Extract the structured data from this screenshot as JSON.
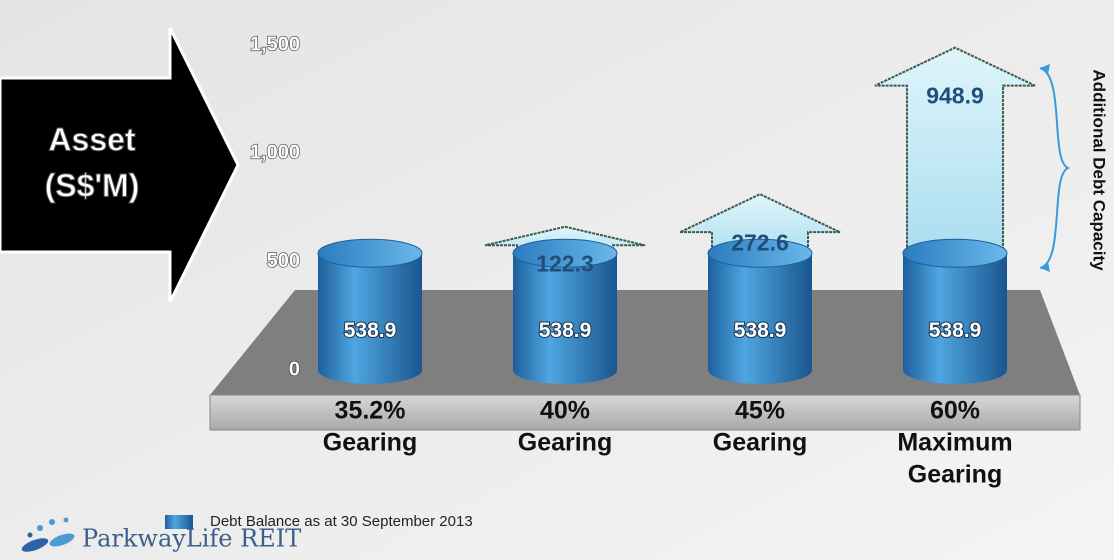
{
  "chart_data": {
    "type": "bar",
    "y_axis_label": [
      "Asset",
      "(S$'M)"
    ],
    "categories": [
      [
        "35.2%",
        "Gearing"
      ],
      [
        "40%",
        "Gearing"
      ],
      [
        "45%",
        "Gearing"
      ],
      [
        "60%",
        "Maximum",
        "Gearing"
      ]
    ],
    "series": [
      {
        "name": "Debt Balance as at 30 September 2013",
        "color": "#2b7cc0",
        "values": [
          538.9,
          538.9,
          538.9,
          538.9
        ]
      },
      {
        "name": "Additional Debt Capacity",
        "color": "#c8eef8",
        "values": [
          null,
          122.3,
          272.6,
          948.9
        ]
      }
    ],
    "ylim": [
      0,
      1500
    ],
    "yticks": [
      0,
      500,
      {
        "value": 1000,
        "label": "1,000"
      },
      {
        "value": 1500,
        "label": "1,500"
      }
    ]
  },
  "logo": "ParkwayLife REIT"
}
